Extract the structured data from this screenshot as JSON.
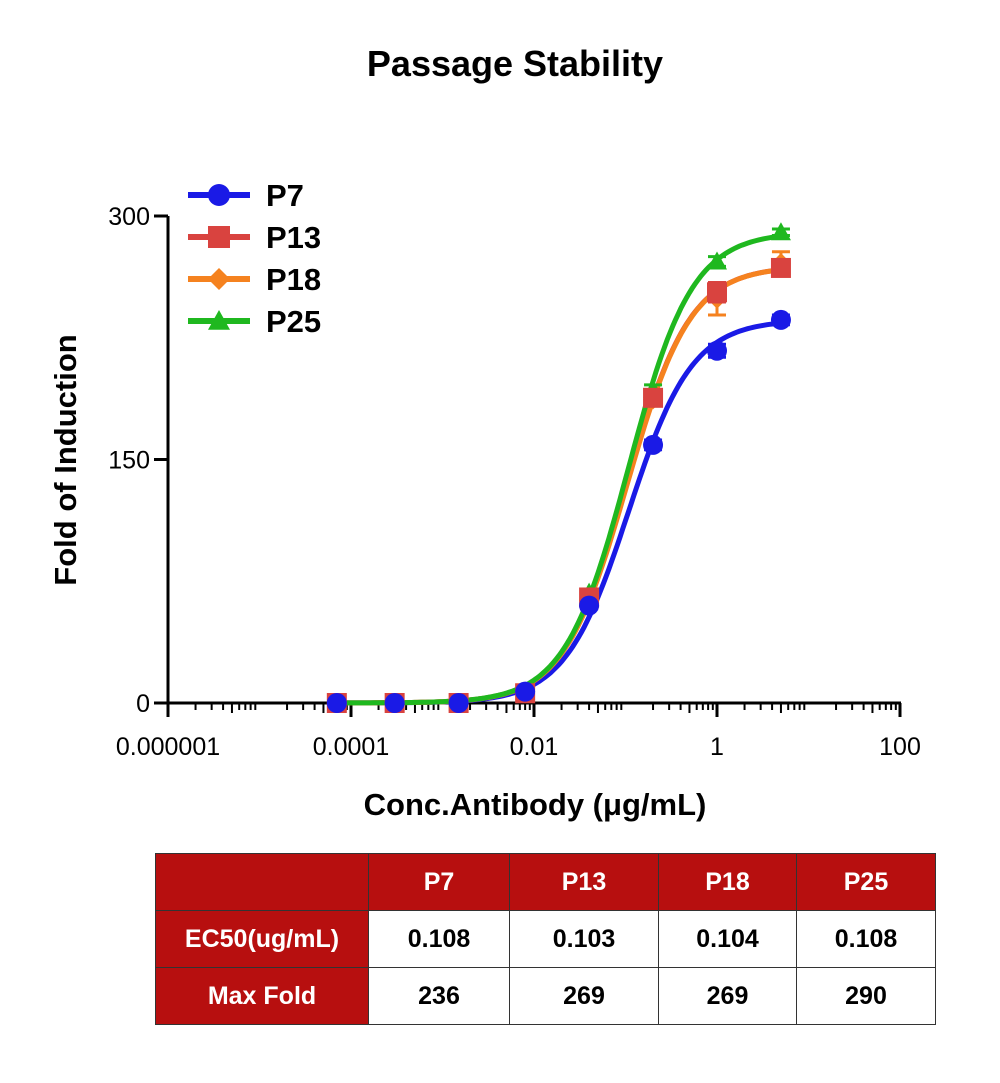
{
  "chart_data": {
    "type": "line",
    "title": "Passage Stability",
    "xlabel": "Conc.Antibody (μg/mL)",
    "ylabel": "Fold of Induction",
    "x_scale": "log",
    "xlim": [
      1e-06,
      100
    ],
    "ylim": [
      0,
      300
    ],
    "x_ticks": [
      {
        "value": 1e-06,
        "label": "0.000001"
      },
      {
        "value": 0.0001,
        "label": "0.0001"
      },
      {
        "value": 0.01,
        "label": "0.01"
      },
      {
        "value": 1,
        "label": "1"
      },
      {
        "value": 100,
        "label": "100"
      }
    ],
    "y_ticks": [
      {
        "value": 0,
        "label": "0"
      },
      {
        "value": 150,
        "label": "150"
      },
      {
        "value": 300,
        "label": "300"
      }
    ],
    "legend_position": "top-left",
    "x": [
      7e-05,
      0.0003,
      0.0015,
      0.008,
      0.04,
      0.2,
      1,
      5
    ],
    "series": [
      {
        "name": "P7",
        "color": "#1a1ae6",
        "marker": "circle",
        "ec50": 0.108,
        "max": 236,
        "values": [
          0,
          0,
          0,
          7,
          60,
          159,
          217,
          236
        ],
        "error": [
          0,
          0,
          0,
          0,
          2,
          3,
          4,
          3
        ]
      },
      {
        "name": "P13",
        "color": "#d9433f",
        "marker": "square",
        "ec50": 0.103,
        "max": 269,
        "values": [
          0,
          0,
          0,
          6,
          65,
          188,
          253,
          268
        ],
        "error": [
          0,
          0,
          0,
          0,
          2,
          4,
          6,
          4
        ]
      },
      {
        "name": "P18",
        "color": "#f5821f",
        "marker": "diamond",
        "ec50": 0.104,
        "max": 269,
        "values": [
          0,
          0,
          0,
          6,
          64,
          187,
          249,
          271
        ],
        "error": [
          0,
          0,
          0,
          0,
          2,
          4,
          10,
          7
        ]
      },
      {
        "name": "P25",
        "color": "#1fb81f",
        "marker": "triangle",
        "ec50": 0.108,
        "max": 290,
        "values": [
          0,
          0,
          0,
          7,
          68,
          193,
          272,
          290
        ],
        "error": [
          0,
          0,
          0,
          0,
          2,
          3,
          3,
          2
        ]
      }
    ]
  },
  "table": {
    "header": [
      "",
      "P7",
      "P13",
      "P18",
      "P25"
    ],
    "rows": [
      [
        "EC50(ug/mL)",
        "0.108",
        "0.103",
        "0.104",
        "0.108"
      ],
      [
        "Max Fold",
        "236",
        "269",
        "269",
        "290"
      ]
    ]
  }
}
